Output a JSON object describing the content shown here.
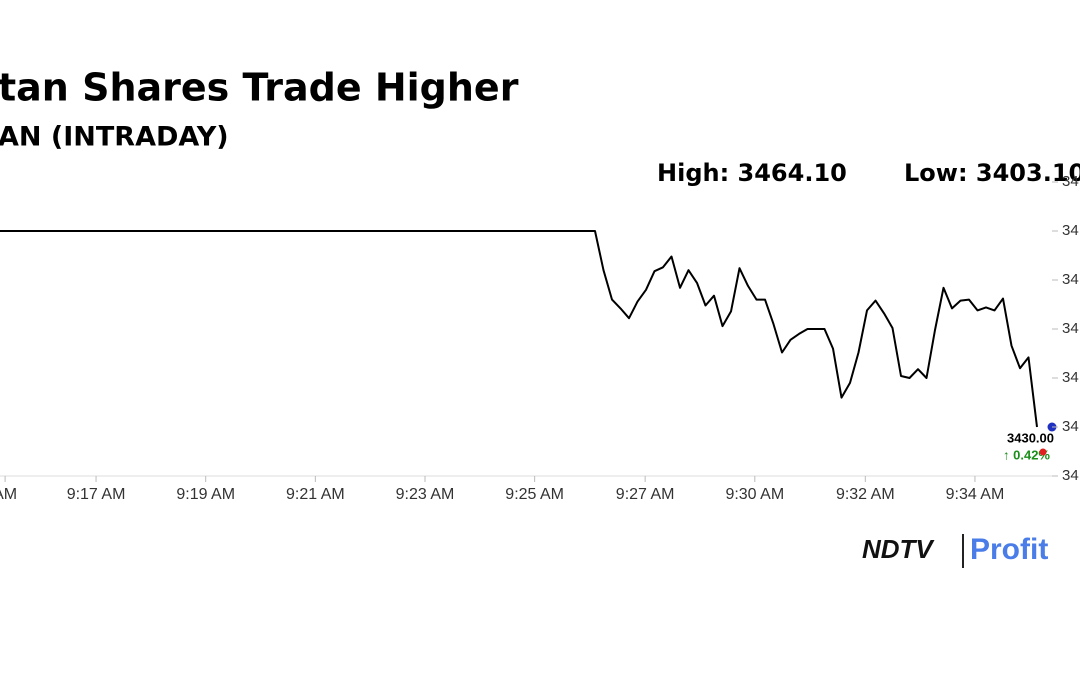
{
  "chart_data": {
    "type": "line",
    "title": "tan Shares Trade Higher",
    "subtitle": "AN (INTRADAY)",
    "high_label": "High: 3464.10",
    "low_label": "Low: 3403.10",
    "last_value_label": "3430.00",
    "change_label": "↑ 0.42%",
    "brand": [
      "NDTV",
      "Profit"
    ],
    "series": [
      {
        "color": "#000000",
        "values": [
          3450,
          3450,
          3450,
          3450,
          3450,
          3450,
          3450,
          3450,
          3450,
          3450,
          3450,
          3450,
          3450,
          3450,
          3450,
          3450,
          3450,
          3450,
          3450,
          3450,
          3450,
          3450,
          3450,
          3450,
          3450,
          3450,
          3450,
          3450,
          3450,
          3450,
          3450,
          3450,
          3450,
          3450,
          3450,
          3450,
          3450,
          3450,
          3450,
          3450,
          3450,
          3450,
          3450,
          3450,
          3450,
          3450,
          3450,
          3450,
          3450,
          3450,
          3450,
          3450,
          3450,
          3450,
          3450,
          3450,
          3450,
          3450,
          3450,
          3450,
          3450,
          3450,
          3450,
          3450,
          3450,
          3450,
          3450,
          3450,
          3450,
          3450,
          3450,
          3446.0,
          3443.0,
          3442.1,
          3441.1,
          3442.8,
          3444.0,
          3445.9,
          3446.3,
          3447.4,
          3444.2,
          3446.0,
          3444.7,
          3442.4,
          3443.4,
          3440.3,
          3441.8,
          3446.2,
          3444.4,
          3443.0,
          3443.0,
          3440.5,
          3437.6,
          3438.9,
          3439.5,
          3440.0,
          3440.0,
          3440.0,
          3438.0,
          3433.0,
          3434.5,
          3437.6,
          3441.9,
          3442.9,
          3441.6,
          3440.1,
          3435.2,
          3435.0,
          3435.9,
          3435.0,
          3439.9,
          3444.2,
          3442.1,
          3442.9,
          3443.0,
          3441.9,
          3442.2,
          3441.9,
          3443.1,
          3438.3,
          3436.0,
          3437.1,
          3430.0
        ]
      }
    ],
    "xlim": [
      0,
      127
    ],
    "xticks": [
      {
        "value": 0.6,
        "label": "AM"
      },
      {
        "value": 11.3,
        "label": "9:17 AM"
      },
      {
        "value": 24.2,
        "label": "9:19 AM"
      },
      {
        "value": 37.1,
        "label": "9:21 AM"
      },
      {
        "value": 50,
        "label": "9:23 AM"
      },
      {
        "value": 62.9,
        "label": "9:25 AM"
      },
      {
        "value": 75.9,
        "label": "9:27 AM"
      },
      {
        "value": 88.8,
        "label": "9:30 AM"
      },
      {
        "value": 101.8,
        "label": "9:32 AM"
      },
      {
        "value": 114.7,
        "label": "9:34 AM"
      }
    ],
    "ylim": [
      3425,
      3457
    ],
    "yticks": [
      {
        "value": 3455,
        "label": "34"
      },
      {
        "value": 3450,
        "label": "34"
      },
      {
        "value": 3445,
        "label": "34"
      },
      {
        "value": 3440,
        "label": "34"
      },
      {
        "value": 3435,
        "label": "34"
      },
      {
        "value": 3430,
        "label": "34"
      },
      {
        "value": 3425,
        "label": "34"
      }
    ]
  }
}
